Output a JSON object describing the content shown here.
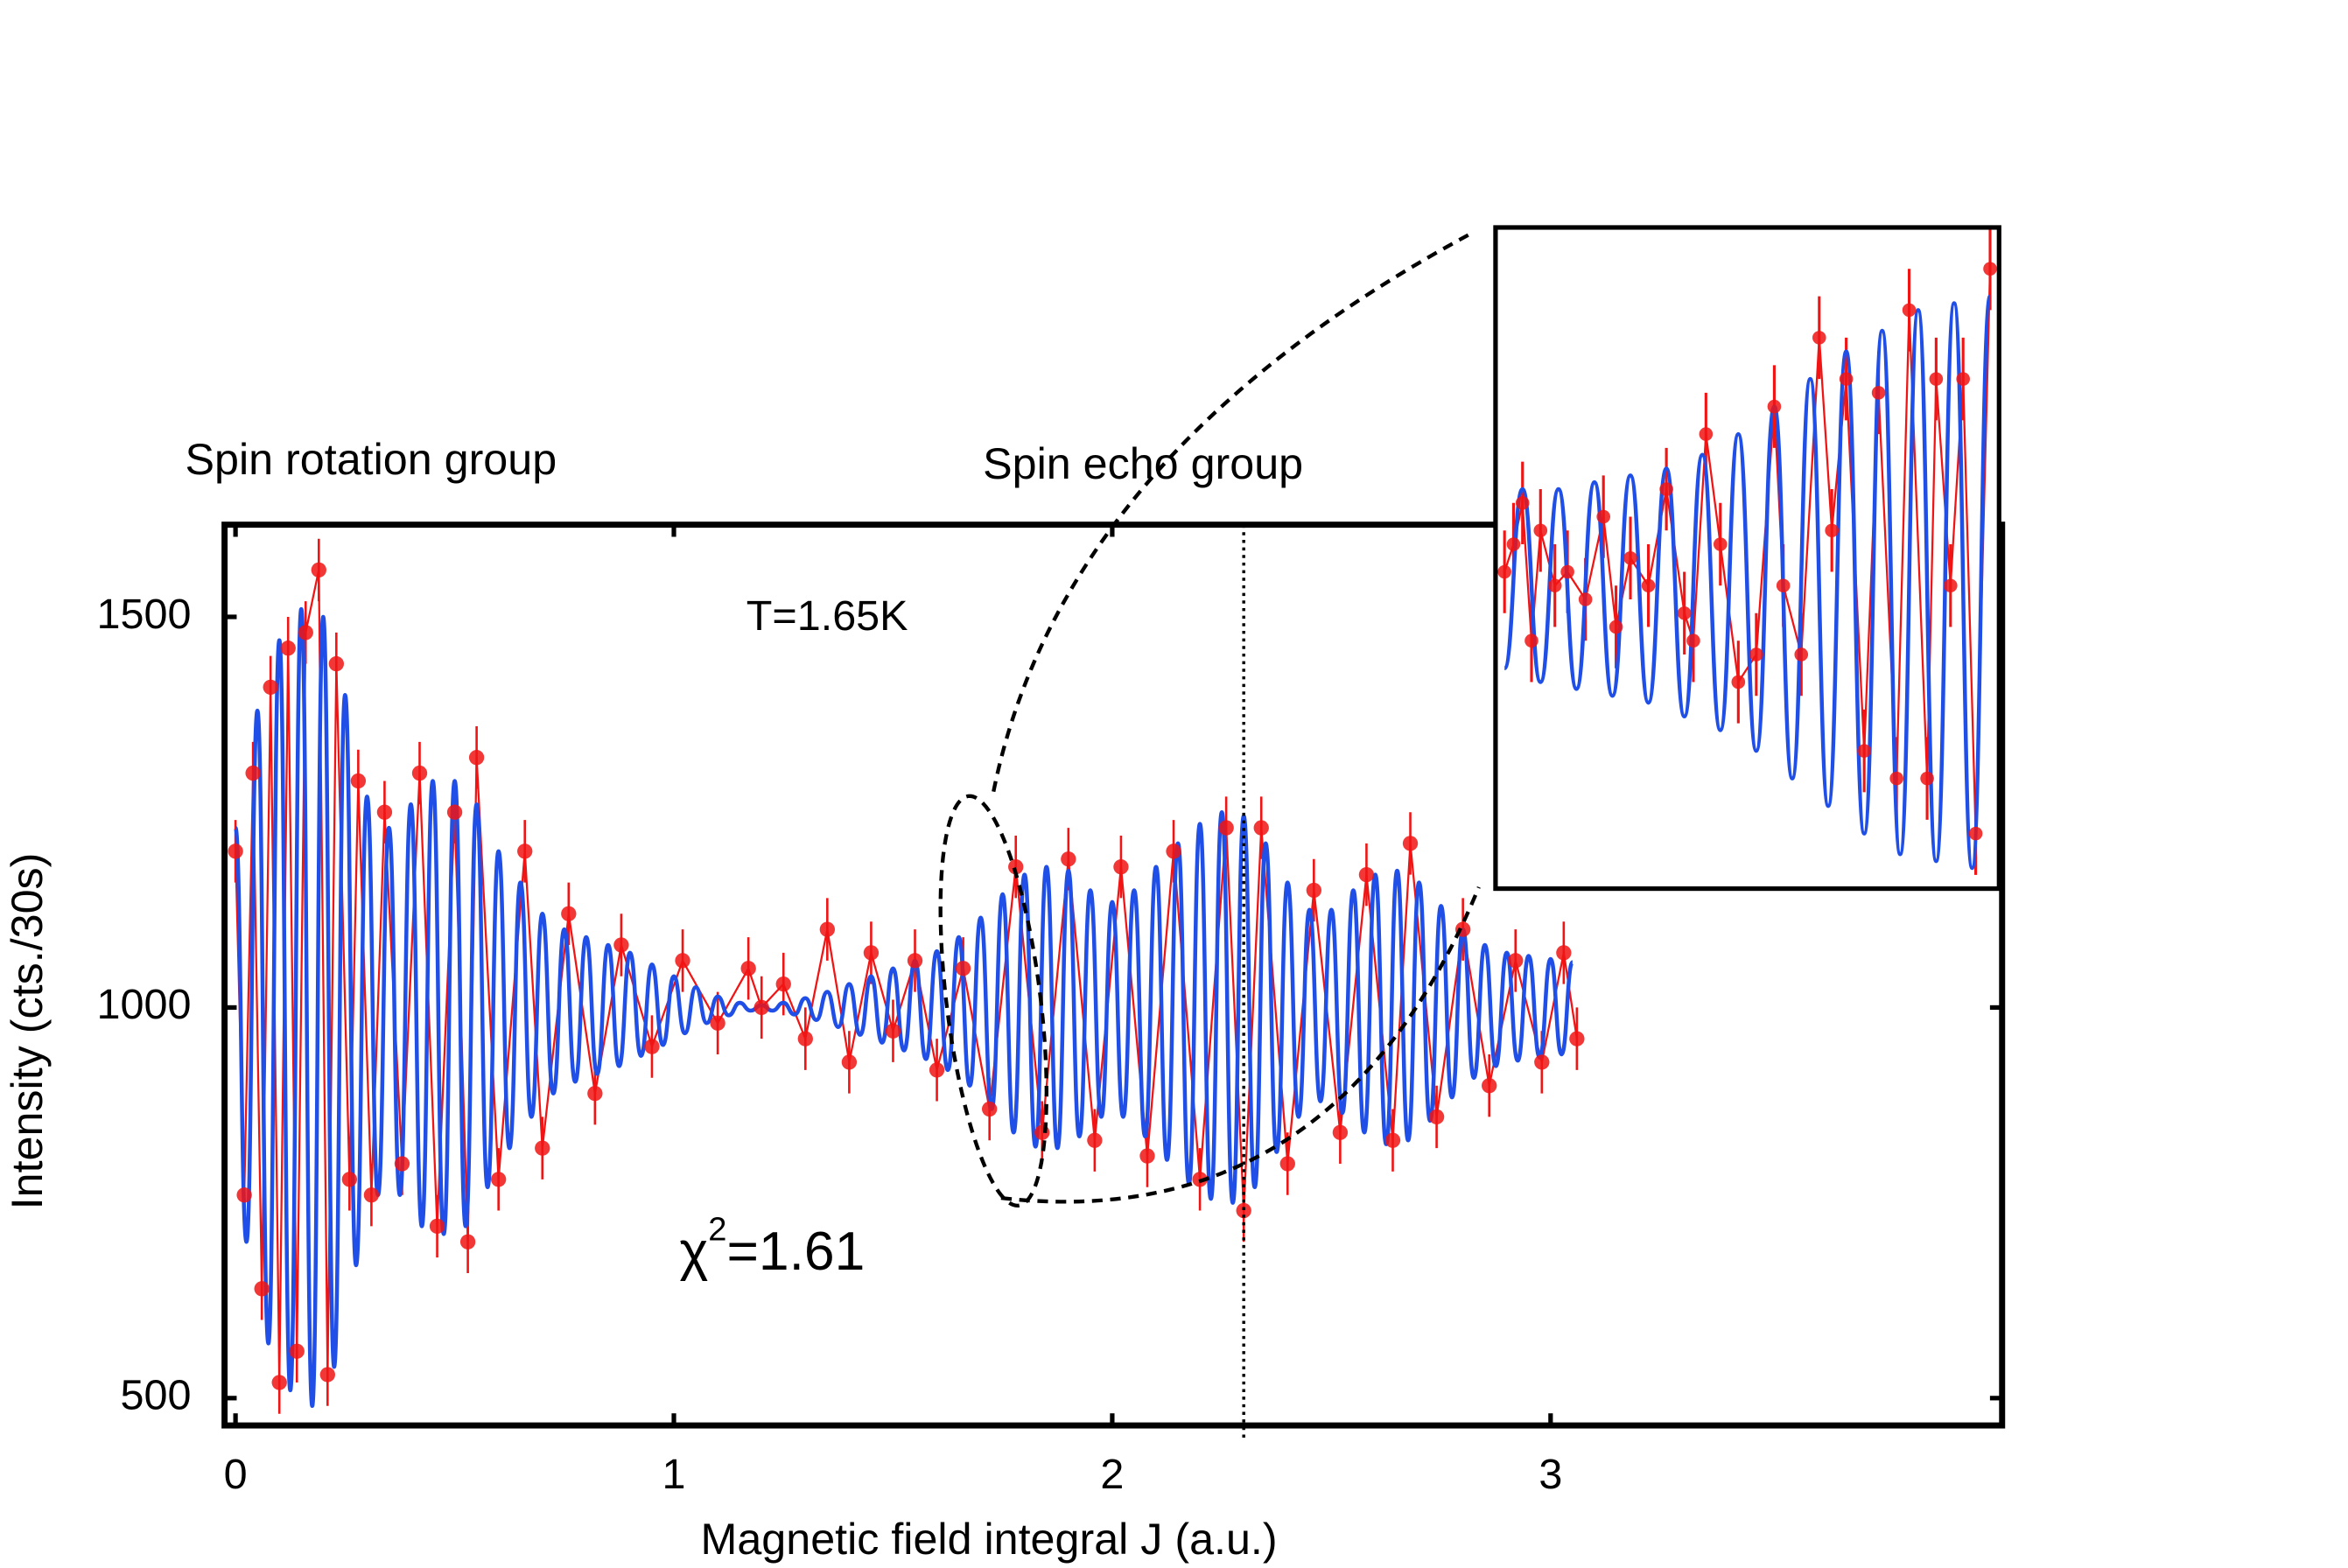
{
  "chart_data": [
    {
      "type": "line",
      "x_label": "Magnetic field integral J (a.u.)",
      "y_label": "Intensity (cts./30s)",
      "annotations": [
        "Spin rotation group",
        "Spin echo group",
        "T=1.65K"
      ],
      "chi_squared": {
        "symbol": "χ",
        "power": "2",
        "value": "=1.61"
      },
      "xlim": [
        -0.025,
        4.03
      ],
      "ylim": [
        465,
        1618
      ],
      "xticks": [
        0,
        1,
        2,
        3
      ],
      "yticks": [
        500,
        1000,
        1500
      ],
      "vline": 2.3,
      "series": [
        {
          "style": "line",
          "color": "#1f4fe6",
          "x": [
            0,
            0.025,
            0.05,
            0.075,
            0.1,
            0.125,
            0.15,
            0.175,
            0.2,
            0.225,
            0.25,
            0.275,
            0.3,
            0.325,
            0.35,
            0.375,
            0.4,
            0.425,
            0.45,
            0.475,
            0.5,
            0.525,
            0.55,
            0.575,
            0.6,
            0.625,
            0.65,
            0.675,
            0.7,
            0.725,
            0.75,
            0.775,
            0.8,
            0.825,
            0.85,
            0.875,
            0.9,
            0.925,
            0.95,
            0.975,
            1,
            1.025,
            1.05,
            1.075,
            1.1,
            1.125,
            1.15,
            1.175,
            1.2,
            1.225,
            1.25,
            1.275,
            1.3,
            1.325,
            1.35,
            1.375,
            1.4,
            1.425,
            1.45,
            1.475,
            1.5,
            1.525,
            1.55,
            1.575,
            1.6,
            1.625,
            1.65,
            1.675,
            1.7,
            1.725,
            1.75,
            1.775,
            1.8,
            1.825,
            1.85,
            1.875,
            1.9,
            1.925,
            1.95,
            1.975,
            2,
            2.025,
            2.05,
            2.075,
            2.1,
            2.125,
            2.15,
            2.175,
            2.2,
            2.225,
            2.25,
            2.275,
            2.3,
            2.325,
            2.35,
            2.375,
            2.4,
            2.425,
            2.45,
            2.475,
            2.5,
            2.525,
            2.55,
            2.575,
            2.6,
            2.625,
            2.65,
            2.675,
            2.7,
            2.725,
            2.75,
            2.775,
            2.8,
            2.825,
            2.85,
            2.875,
            2.9,
            2.925,
            2.95,
            2.975,
            3,
            3.025,
            3.05
          ],
          "values": [
            1230,
            700,
            1380,
            570,
            1470,
            510,
            1510,
            490,
            1500,
            540,
            1400,
            670,
            1270,
            760,
            1230,
            760,
            1260,
            720,
            1290,
            710,
            1290,
            720,
            1260,
            770,
            1200,
            820,
            1160,
            860,
            1120,
            890,
            1100,
            905,
            1090,
            915,
            1080,
            925,
            1070,
            938,
            1055,
            952,
            1040,
            967,
            1026,
            980,
            1014,
            990,
            1006,
            996,
            1003,
            996,
            1006,
            991,
            1012,
            984,
            1020,
            975,
            1030,
            965,
            1040,
            955,
            1050,
            945,
            1060,
            934,
            1072,
            920,
            1090,
            900,
            1115,
            870,
            1145,
            840,
            1170,
            822,
            1180,
            820,
            1175,
            835,
            1150,
            860,
            1135,
            860,
            1150,
            835,
            1180,
            805,
            1210,
            775,
            1235,
            755,
            1250,
            750,
            1245,
            770,
            1210,
            815,
            1160,
            860,
            1125,
            880,
            1125,
            865,
            1150,
            840,
            1170,
            825,
            1175,
            830,
            1160,
            855,
            1130,
            885,
            1100,
            910,
            1080,
            925,
            1070,
            932,
            1066,
            936,
            1062,
            940,
            1058
          ]
        },
        {
          "style": "markers",
          "color": "#f01414",
          "yerr": 40,
          "x": [
            0,
            0.02,
            0.04,
            0.06,
            0.08,
            0.1,
            0.12,
            0.14,
            0.16,
            0.19,
            0.21,
            0.23,
            0.26,
            0.28,
            0.31,
            0.34,
            0.38,
            0.42,
            0.46,
            0.5,
            0.53,
            0.55,
            0.6,
            0.66,
            0.7,
            0.76,
            0.82,
            0.88,
            0.95,
            1.02,
            1.1,
            1.17,
            1.2,
            1.25,
            1.3,
            1.35,
            1.4,
            1.45,
            1.5,
            1.55,
            1.6,
            1.66,
            1.72,
            1.78,
            1.84,
            1.9,
            1.96,
            2.02,
            2.08,
            2.14,
            2.2,
            2.26,
            2.3,
            2.34,
            2.4,
            2.46,
            2.52,
            2.58,
            2.64,
            2.68,
            2.74,
            2.8,
            2.86,
            2.92,
            2.98,
            3.03,
            3.06
          ],
          "values": [
            1200,
            760,
            1300,
            640,
            1410,
            520,
            1460,
            560,
            1480,
            1560,
            530,
            1440,
            780,
            1290,
            760,
            1250,
            800,
            1300,
            720,
            1250,
            700,
            1320,
            780,
            1200,
            820,
            1120,
            890,
            1080,
            950,
            1060,
            980,
            1050,
            1000,
            1030,
            960,
            1100,
            930,
            1070,
            970,
            1060,
            920,
            1050,
            870,
            1180,
            840,
            1190,
            830,
            1180,
            810,
            1200,
            780,
            1230,
            740,
            1230,
            800,
            1150,
            840,
            1170,
            830,
            1210,
            860,
            1100,
            900,
            1060,
            930,
            1070,
            960
          ]
        }
      ]
    },
    {
      "type": "line",
      "xlim": [
        1.595,
        1.875
      ],
      "ylim": [
        780,
        1260
      ],
      "series": [
        {
          "style": "line",
          "color": "#1f4fe6",
          "x": [
            1.6,
            1.61,
            1.62,
            1.63,
            1.64,
            1.65,
            1.66,
            1.67,
            1.68,
            1.69,
            1.7,
            1.71,
            1.72,
            1.73,
            1.74,
            1.75,
            1.76,
            1.77,
            1.78,
            1.79,
            1.8,
            1.81,
            1.82,
            1.83,
            1.84,
            1.85,
            1.86,
            1.87
          ],
          "values": [
            940,
            1070,
            930,
            1070,
            925,
            1075,
            920,
            1080,
            915,
            1085,
            905,
            1095,
            895,
            1110,
            880,
            1130,
            860,
            1150,
            840,
            1170,
            820,
            1185,
            805,
            1200,
            800,
            1205,
            795,
            1210
          ]
        },
        {
          "style": "markers",
          "color": "#f01414",
          "yerr": 30,
          "x": [
            1.6,
            1.605,
            1.61,
            1.615,
            1.62,
            1.628,
            1.635,
            1.645,
            1.655,
            1.662,
            1.67,
            1.68,
            1.69,
            1.7,
            1.705,
            1.712,
            1.72,
            1.73,
            1.74,
            1.75,
            1.755,
            1.765,
            1.775,
            1.782,
            1.79,
            1.8,
            1.808,
            1.818,
            1.825,
            1.835,
            1.84,
            1.848,
            1.855,
            1.862,
            1.87
          ],
          "values": [
            1010,
            1030,
            1060,
            960,
            1040,
            1000,
            1010,
            990,
            1050,
            970,
            1020,
            1000,
            1070,
            980,
            960,
            1110,
            1030,
            930,
            950,
            1130,
            1000,
            950,
            1180,
            1040,
            1150,
            880,
            1140,
            860,
            1200,
            860,
            1150,
            1000,
            1150,
            820,
            1230
          ]
        }
      ]
    }
  ]
}
